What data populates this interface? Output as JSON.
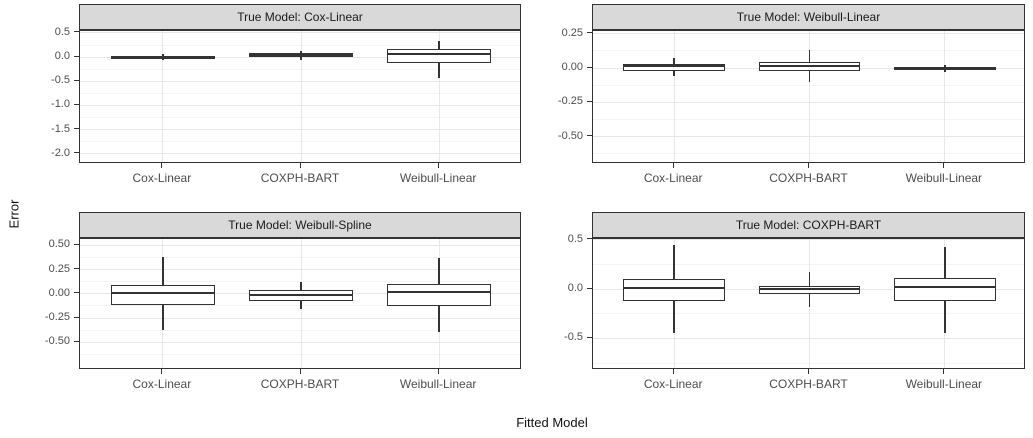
{
  "figure": {
    "ylabel": "Error",
    "xlabel": "Fitted Model"
  },
  "chart_data": {
    "type": "boxplot",
    "layout_hint": "2x2 facet grid, free y scales, ggplot-style grey strips, no outlier points, grid on",
    "facet_variable": "True Model",
    "x_categories": [
      "Cox-Linear",
      "COXPH-BART",
      "Weibull-Linear"
    ],
    "xlabel": "Fitted Model",
    "ylabel": "Error",
    "style": {
      "strip_bg": "#d9d9d9",
      "panel_border": "#333333",
      "box_color": "#333333",
      "grid_major": "#e7e7e7",
      "grid_minor": "#f4f4f4",
      "tick_text_color": "#4d4d4d"
    },
    "facets": [
      {
        "title": "True Model: Cox-Linear",
        "ylim": [
          -2.21,
          0.54
        ],
        "yticks": [
          {
            "v": 0.5,
            "label": "0.5"
          },
          {
            "v": 0.0,
            "label": "0.0"
          },
          {
            "v": -0.5,
            "label": "-0.5"
          },
          {
            "v": -1.0,
            "label": "-1.0"
          },
          {
            "v": -1.5,
            "label": "-1.5"
          },
          {
            "v": -2.0,
            "label": "-2.0"
          }
        ],
        "yminor": [
          0.25,
          -0.25,
          -0.75,
          -1.25,
          -1.75
        ],
        "boxes": [
          {
            "x": "Cox-Linear",
            "whisker_low": -0.06,
            "q1": -0.02,
            "median": 0.01,
            "q3": 0.03,
            "whisker_high": 0.06
          },
          {
            "x": "COXPH-BART",
            "whisker_low": -0.05,
            "q1": 0.0,
            "median": 0.045,
            "q3": 0.09,
            "whisker_high": 0.13
          },
          {
            "x": "Weibull-Linear",
            "whisker_low": -0.43,
            "q1": -0.12,
            "median": 0.055,
            "q3": 0.16,
            "whisker_high": 0.33
          }
        ]
      },
      {
        "title": "True Model: Weibull-Linear",
        "ylim": [
          -0.7,
          0.27
        ],
        "yticks": [
          {
            "v": 0.25,
            "label": "0.25"
          },
          {
            "v": 0.0,
            "label": "0.00"
          },
          {
            "v": -0.25,
            "label": "-0.25"
          },
          {
            "v": -0.5,
            "label": "-0.50"
          }
        ],
        "yminor": [
          0.125,
          -0.125,
          -0.375,
          -0.625
        ],
        "boxes": [
          {
            "x": "Cox-Linear",
            "whisker_low": -0.055,
            "q1": -0.025,
            "median": 0.012,
            "q3": 0.03,
            "whisker_high": 0.07
          },
          {
            "x": "COXPH-BART",
            "whisker_low": -0.1,
            "q1": -0.025,
            "median": 0.018,
            "q3": 0.045,
            "whisker_high": 0.13
          },
          {
            "x": "Weibull-Linear",
            "whisker_low": -0.03,
            "q1": -0.01,
            "median": 0.0,
            "q3": 0.01,
            "whisker_high": 0.02
          }
        ]
      },
      {
        "title": "True Model: Weibull-Spline",
        "ylim": [
          -0.785,
          0.565
        ],
        "yticks": [
          {
            "v": 0.5,
            "label": "0.50"
          },
          {
            "v": 0.25,
            "label": "0.25"
          },
          {
            "v": 0.0,
            "label": "0.00"
          },
          {
            "v": -0.25,
            "label": "-0.25"
          },
          {
            "v": -0.5,
            "label": "-0.50"
          }
        ],
        "yminor": [
          0.375,
          0.125,
          -0.125,
          -0.375,
          -0.625
        ],
        "boxes": [
          {
            "x": "Cox-Linear",
            "whisker_low": -0.37,
            "q1": -0.115,
            "median": 0.01,
            "q3": 0.095,
            "whisker_high": 0.38
          },
          {
            "x": "COXPH-BART",
            "whisker_low": -0.155,
            "q1": -0.07,
            "median": -0.01,
            "q3": 0.035,
            "whisker_high": 0.125
          },
          {
            "x": "Weibull-Linear",
            "whisker_low": -0.39,
            "q1": -0.125,
            "median": 0.02,
            "q3": 0.1,
            "whisker_high": 0.37
          }
        ]
      },
      {
        "title": "True Model: COXPH-BART",
        "ylim": [
          -0.82,
          0.51
        ],
        "yticks": [
          {
            "v": 0.5,
            "label": "0.5"
          },
          {
            "v": 0.0,
            "label": "0.0"
          },
          {
            "v": -0.5,
            "label": "-0.5"
          }
        ],
        "yminor": [
          0.25,
          -0.25,
          -0.75
        ],
        "boxes": [
          {
            "x": "Cox-Linear",
            "whisker_low": -0.44,
            "q1": -0.12,
            "median": 0.015,
            "q3": 0.105,
            "whisker_high": 0.45
          },
          {
            "x": "COXPH-BART",
            "whisker_low": -0.185,
            "q1": -0.05,
            "median": 0.005,
            "q3": 0.035,
            "whisker_high": 0.17
          },
          {
            "x": "Weibull-Linear",
            "whisker_low": -0.44,
            "q1": -0.12,
            "median": 0.02,
            "q3": 0.11,
            "whisker_high": 0.43
          }
        ]
      }
    ]
  }
}
